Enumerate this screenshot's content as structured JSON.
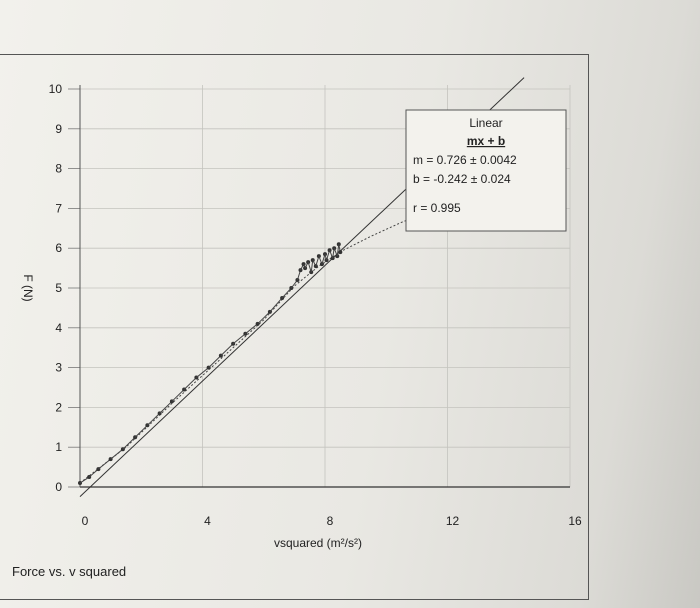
{
  "caption": "Force vs. v squared",
  "chart_data": {
    "type": "scatter",
    "title": "",
    "xlabel": "vsquared (m²/s²)",
    "ylabel": "F (N)",
    "xlim": [
      0,
      16
    ],
    "ylim": [
      0,
      10
    ],
    "xticks": [
      0,
      4,
      8,
      12,
      16
    ],
    "yticks": [
      0,
      1,
      2,
      3,
      4,
      5,
      6,
      7,
      8,
      9,
      10
    ],
    "grid": true,
    "series": [
      {
        "x": [
          0.0,
          0.3,
          0.6,
          1.0,
          1.4,
          1.8,
          2.2,
          2.6,
          3.0,
          3.4,
          3.8,
          4.2,
          4.6,
          5.0,
          5.4,
          5.8,
          6.2,
          6.6,
          6.9,
          7.1,
          7.2,
          7.3,
          7.35,
          7.45,
          7.55,
          7.6,
          7.7,
          7.8,
          7.9,
          8.0,
          8.05,
          8.15,
          8.25,
          8.3,
          8.4,
          8.45,
          8.5
        ],
        "y": [
          0.1,
          0.25,
          0.45,
          0.7,
          0.95,
          1.25,
          1.55,
          1.85,
          2.15,
          2.45,
          2.75,
          3.0,
          3.3,
          3.6,
          3.85,
          4.1,
          4.4,
          4.75,
          5.0,
          5.2,
          5.45,
          5.6,
          5.5,
          5.65,
          5.4,
          5.7,
          5.55,
          5.8,
          5.6,
          5.85,
          5.7,
          5.95,
          5.75,
          6.0,
          5.8,
          6.1,
          5.9
        ]
      }
    ],
    "fit": {
      "type": "Linear",
      "equation": "mx + b",
      "m": "0.726",
      "m_err": "0.0042",
      "b": "-0.242",
      "b_err": "0.024",
      "r": "0.995",
      "line_x": [
        0,
        14.5
      ],
      "line_y": [
        -0.242,
        10.285
      ]
    },
    "curve": {
      "x": [
        0,
        1.5,
        3.0,
        4.5,
        6.0,
        7.0,
        7.8,
        8.6,
        9.5,
        10.5,
        11.5,
        12.4
      ],
      "y": [
        0.1,
        1.0,
        2.1,
        3.15,
        4.2,
        5.05,
        5.55,
        5.95,
        6.3,
        6.65,
        6.95,
        7.15
      ]
    }
  }
}
